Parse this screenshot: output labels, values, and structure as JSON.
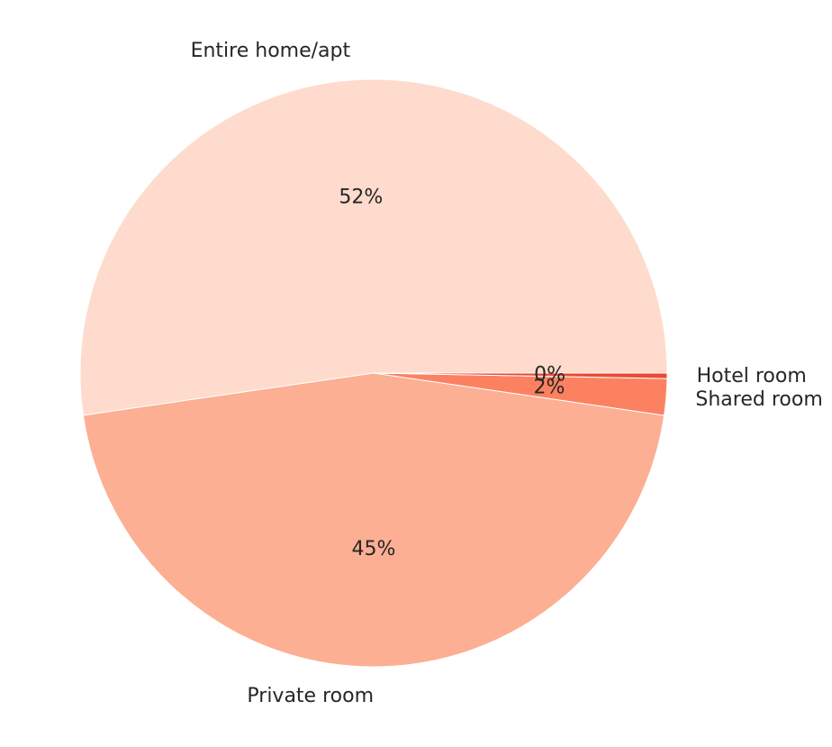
{
  "chart_data": {
    "type": "pie",
    "start_angle_deg": 0,
    "direction": "counterclockwise",
    "slices": [
      {
        "label": "Entire home/apt",
        "value": 52.3,
        "pct_label": "52%",
        "color": "#fedbcc"
      },
      {
        "label": "Private room",
        "value": 45.4,
        "pct_label": "45%",
        "color": "#fcaf93"
      },
      {
        "label": "Shared room",
        "value": 2.0,
        "pct_label": "2%",
        "color": "#fc8161"
      },
      {
        "label": "Hotel room",
        "value": 0.3,
        "pct_label": "0%",
        "color": "#e94a35"
      }
    ]
  }
}
